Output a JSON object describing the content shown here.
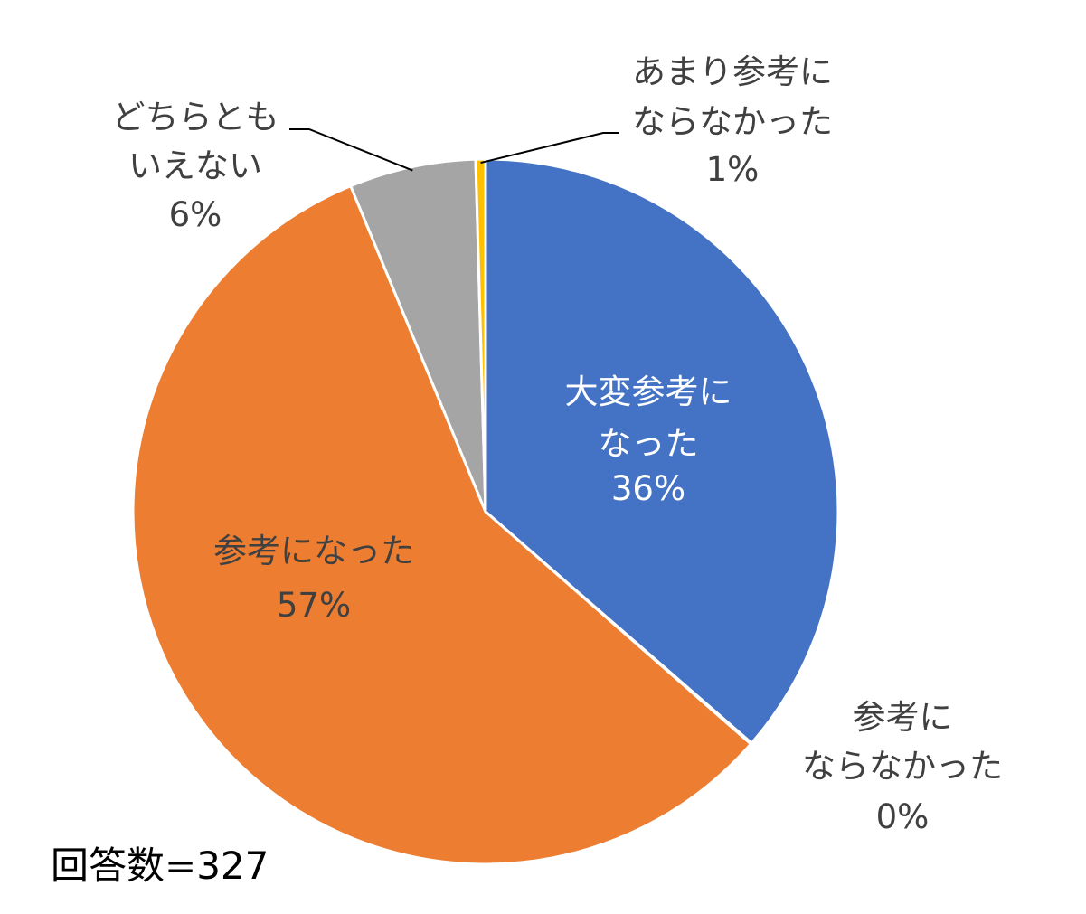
{
  "chart_data": {
    "type": "pie",
    "slices": [
      {
        "label_lines": [
          "大変参考に",
          "なった"
        ],
        "pct_label": "36%",
        "value": 36.4,
        "color": "#4472C4"
      },
      {
        "label_lines": [
          "参考に",
          "ならなかった"
        ],
        "pct_label": "0%",
        "value": 0.05,
        "color": "#5B9BD5"
      },
      {
        "label_lines": [
          "参考になった"
        ],
        "pct_label": "57%",
        "value": 57.3,
        "color": "#ED7D31"
      },
      {
        "label_lines": [
          "どちらとも",
          "いえない"
        ],
        "pct_label": "6%",
        "value": 5.8,
        "color": "#A5A5A5"
      },
      {
        "label_lines": [
          "あまり参考に",
          "ならなかった"
        ],
        "pct_label": "1%",
        "value": 0.45,
        "color": "#FFC000"
      }
    ],
    "slice_border": "#ffffff",
    "leader_line_color": "#000000",
    "footnote": "回答数=327"
  }
}
